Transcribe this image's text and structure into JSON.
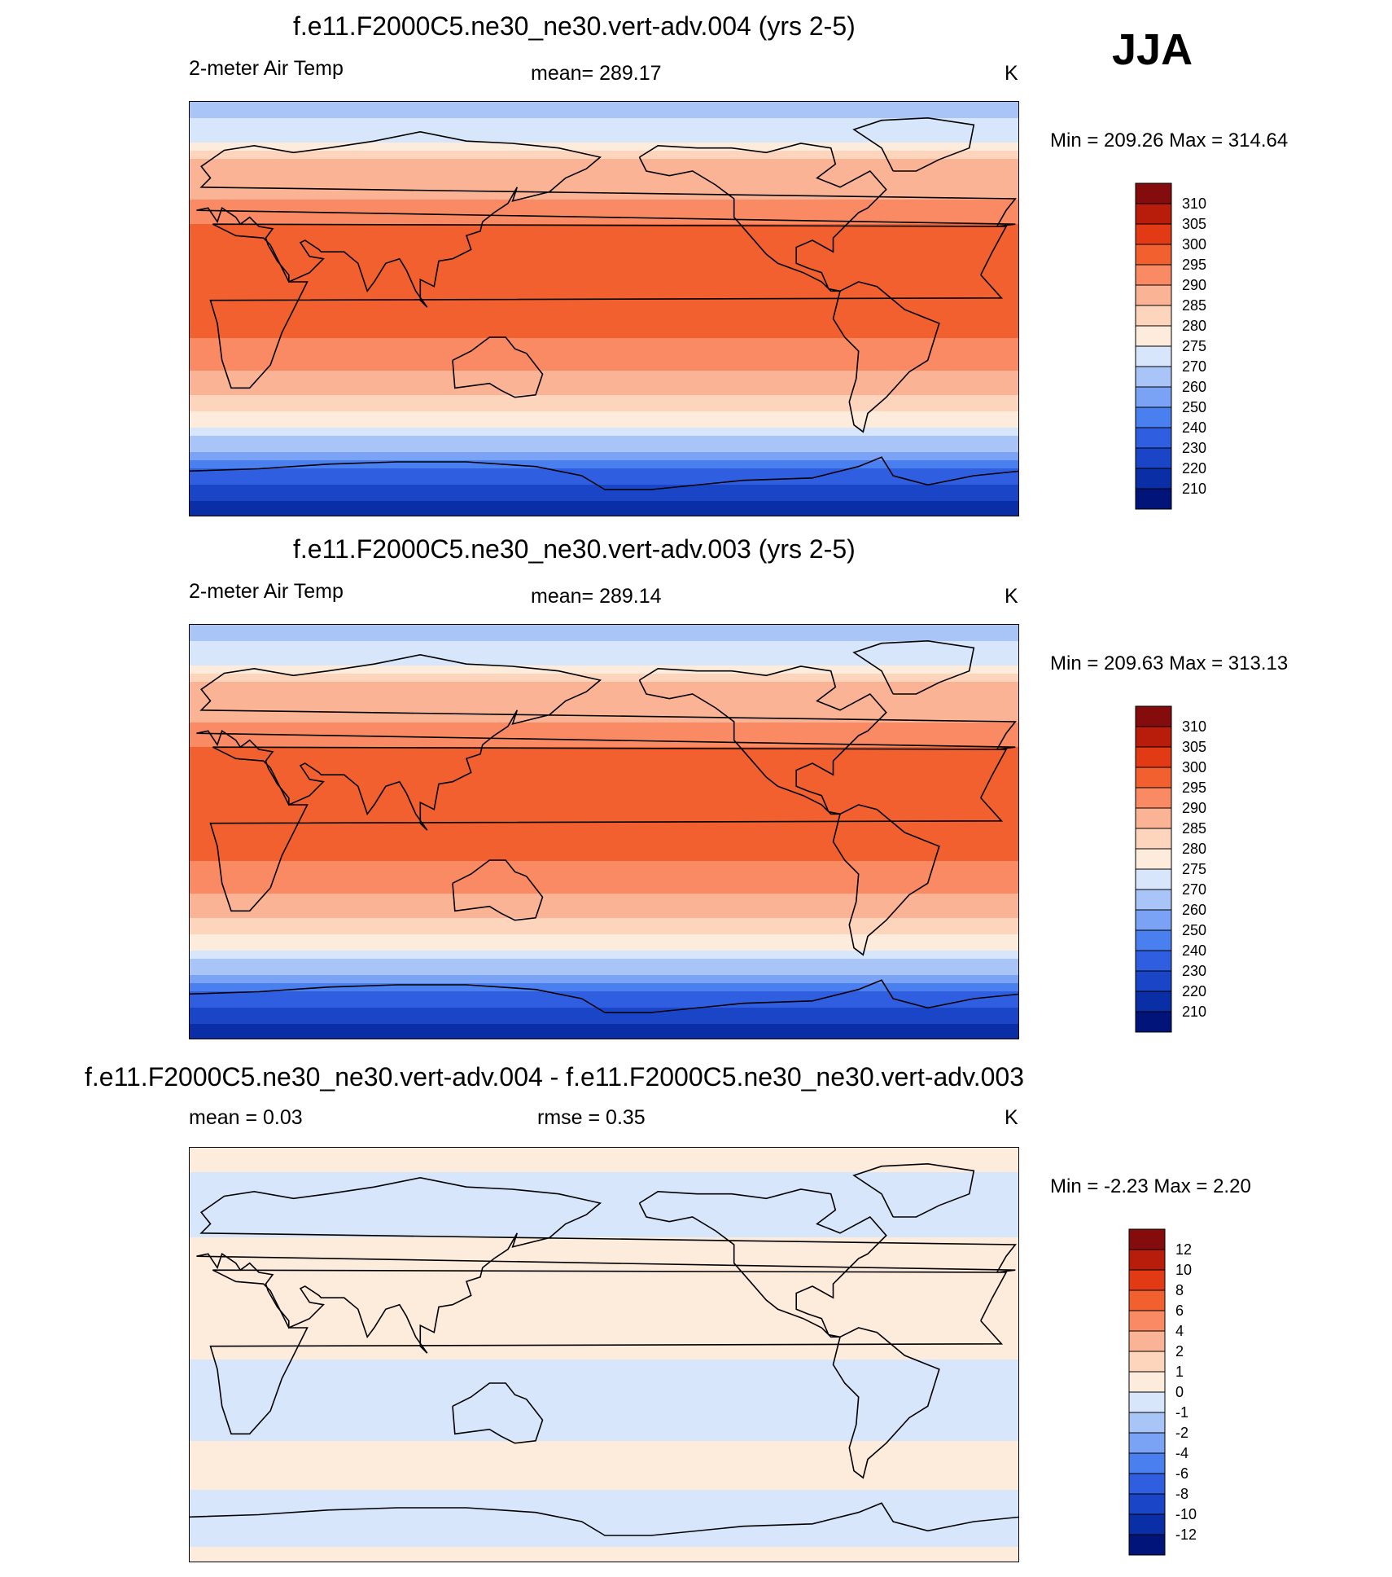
{
  "season": "JJA",
  "panels": [
    {
      "title": "f.e11.F2000C5.ne30_ne30.vert-adv.004 (yrs 2-5)",
      "variable": "2-meter Air Temp",
      "stat_text": "mean= 289.17",
      "units": "K",
      "minmax": "Min = 209.26 Max = 314.64"
    },
    {
      "title": "f.e11.F2000C5.ne30_ne30.vert-adv.003 (yrs 2-5)",
      "variable": "2-meter Air Temp",
      "stat_text": "mean= 289.14",
      "units": "K",
      "minmax": "Min = 209.63 Max = 313.13"
    },
    {
      "title": "f.e11.F2000C5.ne30_ne30.vert-adv.004 - f.e11.F2000C5.ne30_ne30.vert-adv.003",
      "mean_text": "mean =   0.03",
      "rmse_text": "rmse =   0.35",
      "units": "K",
      "minmax": "Min =  -2.23 Max =   2.20"
    }
  ],
  "chart_data": [
    {
      "type": "heatmap",
      "title": "f.e11.F2000C5.ne30_ne30.vert-adv.004 (yrs 2-5)",
      "variable": "2-meter Air Temp",
      "units": "K",
      "mean": 289.17,
      "min": 209.26,
      "max": 314.64,
      "levels": [
        210,
        220,
        230,
        240,
        250,
        260,
        270,
        275,
        280,
        285,
        290,
        295,
        300,
        305,
        310
      ],
      "colors": [
        "#00147a",
        "#0a2ea6",
        "#1a45c7",
        "#2f5fe0",
        "#4a7ff0",
        "#7aa3f6",
        "#a9c5f8",
        "#d7e6fb",
        "#fdebdc",
        "#fdd5bd",
        "#fbb395",
        "#f98a63",
        "#f2602f",
        "#e23a14",
        "#b81c0b",
        "#840c0c"
      ],
      "lat_profile": [
        [
          90,
          268
        ],
        [
          75,
          272
        ],
        [
          65,
          285
        ],
        [
          55,
          287
        ],
        [
          45,
          292
        ],
        [
          30,
          297
        ],
        [
          15,
          300
        ],
        [
          0,
          298
        ],
        [
          -15,
          294
        ],
        [
          -30,
          288
        ],
        [
          -45,
          280
        ],
        [
          -50,
          276
        ],
        [
          -55,
          272
        ],
        [
          -60,
          265
        ],
        [
          -65,
          252
        ],
        [
          -70,
          240
        ],
        [
          -75,
          228
        ],
        [
          -90,
          215
        ]
      ]
    },
    {
      "type": "heatmap",
      "title": "f.e11.F2000C5.ne30_ne30.vert-adv.003 (yrs 2-5)",
      "variable": "2-meter Air Temp",
      "units": "K",
      "mean": 289.14,
      "min": 209.63,
      "max": 313.13,
      "levels": [
        210,
        220,
        230,
        240,
        250,
        260,
        270,
        275,
        280,
        285,
        290,
        295,
        300,
        305,
        310
      ],
      "colors": [
        "#00147a",
        "#0a2ea6",
        "#1a45c7",
        "#2f5fe0",
        "#4a7ff0",
        "#7aa3f6",
        "#a9c5f8",
        "#d7e6fb",
        "#fdebdc",
        "#fdd5bd",
        "#fbb395",
        "#f98a63",
        "#f2602f",
        "#e23a14",
        "#b81c0b",
        "#840c0c"
      ],
      "lat_profile": [
        [
          90,
          268
        ],
        [
          75,
          272
        ],
        [
          65,
          285
        ],
        [
          55,
          287
        ],
        [
          45,
          292
        ],
        [
          30,
          297
        ],
        [
          15,
          300
        ],
        [
          0,
          298
        ],
        [
          -15,
          294
        ],
        [
          -30,
          288
        ],
        [
          -45,
          280
        ],
        [
          -50,
          276
        ],
        [
          -55,
          272
        ],
        [
          -60,
          265
        ],
        [
          -65,
          252
        ],
        [
          -70,
          240
        ],
        [
          -75,
          228
        ],
        [
          -90,
          215
        ]
      ]
    },
    {
      "type": "heatmap",
      "title": "f.e11.F2000C5.ne30_ne30.vert-adv.004 - f.e11.F2000C5.ne30_ne30.vert-adv.003",
      "units": "K",
      "mean": 0.03,
      "rmse": 0.35,
      "min": -2.23,
      "max": 2.2,
      "levels": [
        -12,
        -10,
        -8,
        -6,
        -4,
        -2,
        -1,
        0,
        1,
        2,
        4,
        6,
        8,
        10,
        12
      ],
      "colors": [
        "#00147a",
        "#0a2ea6",
        "#1a45c7",
        "#2f5fe0",
        "#4a7ff0",
        "#7aa3f6",
        "#a9c5f8",
        "#d7e6fb",
        "#fdebdc",
        "#fdd5bd",
        "#fbb395",
        "#f98a63",
        "#f2602f",
        "#e23a14",
        "#b81c0b",
        "#840c0c"
      ],
      "lat_profile": [
        [
          90,
          0.2
        ],
        [
          60,
          -0.3
        ],
        [
          40,
          0.4
        ],
        [
          10,
          0.3
        ],
        [
          -20,
          -0.4
        ],
        [
          -50,
          0.3
        ],
        [
          -70,
          -0.6
        ],
        [
          -90,
          0.3
        ]
      ]
    }
  ]
}
